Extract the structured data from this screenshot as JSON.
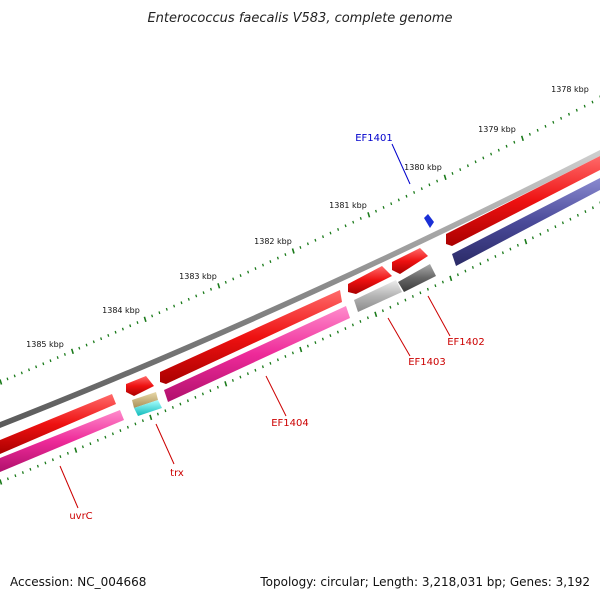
{
  "map": {
    "title": "Enterococcus faecalis V583, complete genome",
    "accession": "Accession: NC_004668",
    "summary": "Topology: circular; Length: 3,218,031 bp; Genes: 3,192",
    "ticks": [
      {
        "label": "1378 kbp"
      },
      {
        "label": "1379 kbp"
      },
      {
        "label": "1380 kbp"
      },
      {
        "label": "1381 kbp"
      },
      {
        "label": "1382 kbp"
      },
      {
        "label": "1383 kbp"
      },
      {
        "label": "1384 kbp"
      },
      {
        "label": "1385 kbp"
      }
    ],
    "gene_labels": [
      {
        "label": "EF1401",
        "color": "#0000cc"
      },
      {
        "label": "EF1402",
        "color": "#cc0000"
      },
      {
        "label": "EF1403",
        "color": "#cc0000"
      },
      {
        "label": "EF1404",
        "color": "#cc0000"
      },
      {
        "label": "trx",
        "color": "#cc0000"
      },
      {
        "label": "uvrC",
        "color": "#cc0000"
      }
    ],
    "colors": {
      "backbone": "#8a8a8a",
      "cds": "#ee1111",
      "pink_track": "#ee2a99",
      "navy_track": "#4a4a99",
      "dark_gray_track": "#666666",
      "light_gray_track": "#b4b4b4",
      "khaki_track": "#c8b478",
      "cyan_track": "#22dddd",
      "tick": "#1a7a1a",
      "marker": "#1a2fd6"
    }
  }
}
